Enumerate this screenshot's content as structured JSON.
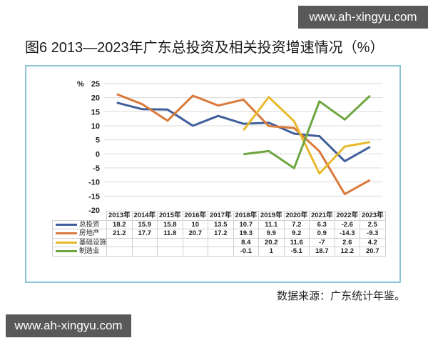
{
  "watermark_top": "www.ah-xingyu.com",
  "watermark_bottom": "www.ah-xingyu.com",
  "title": "图6  2013—2023年广东总投资及相关投资增速情况（%）",
  "source": "数据来源：广东统计年鉴。",
  "colors": {
    "total": "#3f5f9a",
    "real_estate": "#d9793a",
    "infrastructure": "#e8b82a",
    "manufacturing": "#6da63f",
    "frame": "#8cc3d3"
  },
  "chart_data": {
    "type": "line",
    "title": "图6  2013—2023年广东总投资及相关投资增速情况（%）",
    "xlabel": "",
    "ylabel": "%",
    "ylim": [
      -20,
      25
    ],
    "yticks": [
      25,
      20,
      15,
      10,
      5,
      0,
      -5,
      -10,
      -15,
      -20
    ],
    "grid": true,
    "legend_position": "bottom-table",
    "categories": [
      "2013年",
      "2014年",
      "2015年",
      "2016年",
      "2017年",
      "2018年",
      "2019年",
      "2020年",
      "2021年",
      "2022年",
      "2023年"
    ],
    "series": [
      {
        "name": "总投资",
        "color": "#3f5f9a",
        "values": [
          18.2,
          15.9,
          15.8,
          10,
          13.5,
          10.7,
          11.1,
          7.2,
          6.3,
          -2.6,
          2.5
        ]
      },
      {
        "name": "房地产",
        "color": "#d9793a",
        "values": [
          21.2,
          17.7,
          11.8,
          20.7,
          17.2,
          19.3,
          9.9,
          9.2,
          0.9,
          -14.3,
          -9.3
        ]
      },
      {
        "name": "基础设施",
        "color": "#e8b82a",
        "values": [
          null,
          null,
          null,
          null,
          null,
          8.4,
          20.2,
          11.6,
          -7,
          2.6,
          4.2
        ]
      },
      {
        "name": "制造业",
        "color": "#6da63f",
        "values": [
          null,
          null,
          null,
          null,
          null,
          -0.1,
          1,
          -5.1,
          18.7,
          12.2,
          20.7
        ]
      }
    ],
    "table": {
      "rows": [
        [
          "18.2",
          "15.9",
          "15.8",
          "10",
          "13.5",
          "10.7",
          "11.1",
          "7.2",
          "6.3",
          "-2.6",
          "2.5"
        ],
        [
          "21.2",
          "17.7",
          "11.8",
          "20.7",
          "17.2",
          "19.3",
          "9.9",
          "9.2",
          "0.9",
          "-14.3",
          "-9.3"
        ],
        [
          "",
          "",
          "",
          "",
          "",
          "8.4",
          "20.2",
          "11.6",
          "-7",
          "2.6",
          "4.2"
        ],
        [
          "",
          "",
          "",
          "",
          "",
          "-0.1",
          "1",
          "-5.1",
          "18.7",
          "12.2",
          "20.7"
        ]
      ]
    }
  }
}
